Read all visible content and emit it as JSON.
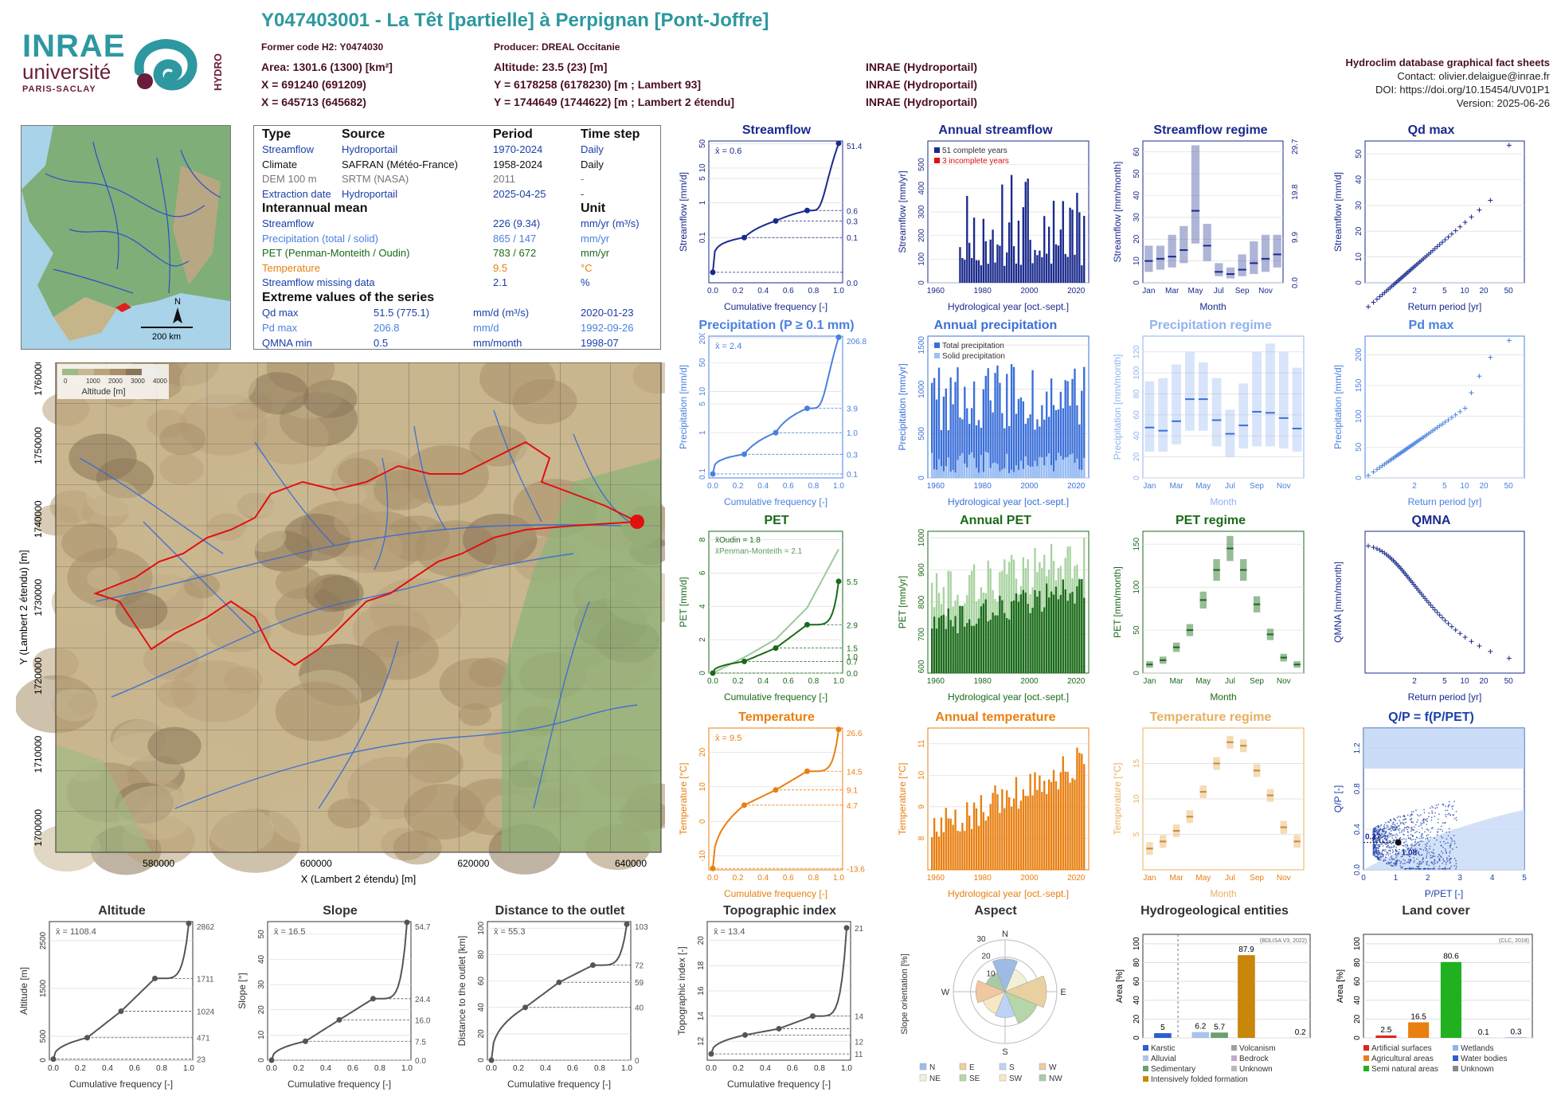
{
  "header": {
    "title": "Y047403001 - La Têt [partielle] à Perpignan [Pont-Joffre]",
    "former_code": "Former code H2: Y0474030",
    "producer": "Producer: DREAL Occitanie",
    "area": "Area: 1301.6 (1300) [km²]",
    "altitude": "Altitude: 23.5 (23) [m]",
    "x93": "X = 691240 (691209)",
    "y93": "Y = 6178258 (6178230) [m ; Lambert 93]",
    "x2e": "X = 645713 (645682)",
    "y2e": "Y = 1744649 (1744622) [m ; Lambert 2 étendu]",
    "src1": "INRAE (Hydroportail)",
    "src2": "INRAE (Hydroportail)",
    "src3": "INRAE (Hydroportail)",
    "db_title": "Hydroclim database graphical fact sheets",
    "contact": "Contact: olivier.delaigue@inrae.fr",
    "doi": "DOI: https://doi.org/10.15454/UV01P1",
    "version": "Version: 2025-06-26"
  },
  "logos": {
    "inrae": "INRAE",
    "univ": "université",
    "paris": "PARIS-SACLAY",
    "hydro": "HYDRO"
  },
  "locmap": {
    "scale": "200 km",
    "north": "N"
  },
  "table": {
    "h_type": "Type",
    "h_source": "Source",
    "h_period": "Period",
    "h_step": "Time step",
    "rows": [
      {
        "type": "Streamflow",
        "source": "Hydroportail",
        "period": "1970-2024",
        "step": "Daily",
        "cls": "c-blue"
      },
      {
        "type": "Climate",
        "source": "SAFRAN (Météo-France)",
        "period": "1958-2024",
        "step": "Daily",
        "cls": "c-dark"
      },
      {
        "type": "DEM 100 m",
        "source": "SRTM (NASA)",
        "period": "2011",
        "step": "-",
        "cls": "c-gray"
      },
      {
        "type": "Extraction date",
        "source": "Hydroportail",
        "period": "2025-04-25",
        "step": "-",
        "cls": "c-blue"
      }
    ],
    "h_mean": "Interannual mean",
    "h_unit": "Unit",
    "means": [
      {
        "name": "Streamflow",
        "value": "226 (9.34)",
        "unit": "mm/yr (m³/s)",
        "cls": "c-blue"
      },
      {
        "name": "Precipitation (total / solid)",
        "value": "865 / 147",
        "unit": "mm/yr",
        "cls": "c-lblue"
      },
      {
        "name": "PET (Penman-Monteith / Oudin)",
        "value": "783 / 672",
        "unit": "mm/yr",
        "cls": "c-green"
      },
      {
        "name": "Temperature",
        "value": "9.5",
        "unit": "°C",
        "cls": "c-orange"
      },
      {
        "name": "Streamflow missing data",
        "value": "2.1",
        "unit": "%",
        "cls": "c-blue"
      }
    ],
    "h_extreme": "Extreme values of the series",
    "extremes": [
      {
        "name": "Qd max",
        "value": "51.5 (775.1)",
        "unit": "mm/d (m³/s)",
        "date": "2020-01-23",
        "cls": "c-blue"
      },
      {
        "name": "Pd max",
        "value": "206.8",
        "unit": "mm/d",
        "date": "1992-09-26",
        "cls": "c-lblue"
      },
      {
        "name": "QMNA min",
        "value": "0.5",
        "unit": "mm/month",
        "date": "1998-07",
        "cls": "c-blue"
      }
    ]
  },
  "map": {
    "xlabel": "X (Lambert 2 étendu) [m]",
    "ylabel": "Y (Lambert 2 étendu) [m]",
    "xticks": [
      "580000",
      "600000",
      "620000",
      "640000"
    ],
    "yticks": [
      "1700000",
      "1710000",
      "1720000",
      "1730000",
      "1740000",
      "1750000",
      "1760000"
    ],
    "legend_ticks": [
      "0",
      "1000",
      "2000",
      "3000",
      "4000"
    ],
    "legend_title": "Altitude [m]"
  },
  "chart_data": [
    {
      "id": "streamflow",
      "type": "line",
      "title": "Streamflow",
      "xlabel": "Cumulative frequency [-]",
      "ylabel": "Streamflow [mm/d]",
      "mean": "x̄ = 0.6",
      "ylog": true,
      "ylim": [
        0.005,
        60
      ],
      "x": [
        0,
        0.25,
        0.5,
        0.75,
        1.0
      ],
      "y": [
        0.01,
        0.1,
        0.3,
        0.6,
        51.4
      ],
      "right_ticks": [
        "51.4",
        "0.6",
        "0.3",
        "0.1",
        "0.0"
      ],
      "yticks": [
        "0.1",
        "1",
        "5",
        "10",
        "50"
      ],
      "color": "#1a2a8c"
    },
    {
      "id": "annual_streamflow",
      "type": "bar",
      "title": "Annual streamflow",
      "xlabel": "Hydrological year [oct.-sept.]",
      "ylabel": "Streamflow [mm/yr]",
      "ylim": [
        0,
        600
      ],
      "yticks": [
        "0",
        "100",
        "200",
        "300",
        "400",
        "500"
      ],
      "xticks": [
        "1960",
        "1980",
        "2000",
        "2020"
      ],
      "legend": [
        "51 complete years",
        "3 incomplete years"
      ],
      "color": "#1a2a8c"
    },
    {
      "id": "streamflow_regime",
      "type": "bar",
      "title": "Streamflow regime",
      "xlabel": "Month",
      "ylabel": "Streamflow [mm/month]",
      "ylim": [
        0,
        65
      ],
      "yticks": [
        "0",
        "10",
        "20",
        "30",
        "40",
        "50",
        "60"
      ],
      "right_ticks": [
        "29.7",
        "19.8",
        "9.9",
        "0.0"
      ],
      "months": [
        "Jan",
        "Mar",
        "May",
        "Jul",
        "Sep",
        "Nov"
      ],
      "median": [
        10,
        11,
        12,
        15,
        33,
        17,
        5,
        4,
        6,
        9,
        11,
        13
      ],
      "q10": [
        5,
        6,
        7,
        9,
        18,
        10,
        3,
        2,
        3,
        4,
        5,
        7
      ],
      "q90": [
        17,
        17,
        22,
        26,
        63,
        27,
        9,
        7,
        13,
        19,
        22,
        22
      ],
      "color": "#1a2a8c"
    },
    {
      "id": "qd_max",
      "type": "scatter",
      "title": "Qd max",
      "xlabel": "Return period [yr]",
      "ylabel": "Streamflow [mm/d]",
      "ylim": [
        0,
        55
      ],
      "yticks": [
        "0",
        "10",
        "20",
        "30",
        "40",
        "50"
      ],
      "xticks": [
        "2",
        "5",
        "10",
        "20",
        "50"
      ],
      "color": "#1a2a8c"
    },
    {
      "id": "precip",
      "type": "line",
      "title": "Precipitation (P ≥ 0.1 mm)",
      "xlabel": "Cumulative frequency [-]",
      "ylabel": "Precipitation [mm/d]",
      "mean": "x̄ = 2.4",
      "ylog": true,
      "ylim": [
        0.08,
        220
      ],
      "x": [
        0,
        0.25,
        0.5,
        0.75,
        1.0
      ],
      "y": [
        0.1,
        0.3,
        1.0,
        3.9,
        206.8
      ],
      "right_ticks": [
        "206.8",
        "3.9",
        "1.0",
        "0.3",
        "0.1"
      ],
      "yticks": [
        "0.1",
        "1",
        "5",
        "10",
        "50",
        "200"
      ],
      "color": "#4a80e0"
    },
    {
      "id": "annual_precip",
      "type": "bar",
      "title": "Annual precipitation",
      "xlabel": "Hydrological year [oct.-sept.]",
      "ylabel": "Precipitation [mm/yr]",
      "ylim": [
        0,
        1600
      ],
      "yticks": [
        "0",
        "500",
        "1000",
        "1500"
      ],
      "xticks": [
        "1960",
        "1980",
        "2000",
        "2020"
      ],
      "legend": [
        "Total precipitation",
        "Solid precipitation"
      ],
      "color": "#3a6fd8"
    },
    {
      "id": "precip_regime",
      "type": "bar",
      "title": "Precipitation regime",
      "xlabel": "Month",
      "ylabel": "Precipitation [mm/month]",
      "ylim": [
        0,
        135
      ],
      "yticks": [
        "0",
        "20",
        "40",
        "60",
        "80",
        "100",
        "120"
      ],
      "months": [
        "Jan",
        "Mar",
        "May",
        "Jul",
        "Sep",
        "Nov"
      ],
      "median": [
        48,
        45,
        54,
        75,
        75,
        55,
        42,
        50,
        63,
        62,
        57,
        47
      ],
      "q10": [
        25,
        25,
        32,
        45,
        45,
        30,
        20,
        28,
        30,
        30,
        28,
        25
      ],
      "q90": [
        92,
        95,
        108,
        120,
        110,
        95,
        65,
        90,
        120,
        128,
        120,
        105
      ],
      "color": "#8fb3f0"
    },
    {
      "id": "pd_max",
      "type": "scatter",
      "title": "Pd max",
      "xlabel": "Return period [yr]",
      "ylabel": "Precipitation [mm/d]",
      "ylim": [
        0,
        230
      ],
      "yticks": [
        "0",
        "50",
        "100",
        "150",
        "200"
      ],
      "xticks": [
        "2",
        "5",
        "10",
        "20",
        "50"
      ],
      "color": "#4a80e0"
    },
    {
      "id": "pet",
      "type": "line",
      "title": "PET",
      "xlabel": "Cumulative frequency [-]",
      "ylabel": "PET [mm/d]",
      "mean_oudin": "x̄Oudin = 1.8",
      "mean_pm": "x̄Penman-Monteith = 2.1",
      "ylim": [
        0,
        8.5
      ],
      "x": [
        0,
        0.25,
        0.5,
        0.75,
        1.0
      ],
      "y": [
        0.0,
        0.7,
        1.5,
        2.9,
        5.5
      ],
      "right_ticks": [
        "5.5",
        "2.9",
        "1.5",
        "1.0",
        "0.7",
        "0.0"
      ],
      "yticks": [
        "0",
        "2",
        "4",
        "6",
        "8"
      ],
      "color": "#1a6a1a"
    },
    {
      "id": "annual_pet",
      "type": "bar",
      "title": "Annual PET",
      "xlabel": "Hydrological year [oct.-sept.]",
      "ylabel": "PET [mm/yr]",
      "ylim": [
        580,
        1020
      ],
      "yticks": [
        "600",
        "700",
        "800",
        "900",
        "1000"
      ],
      "xticks": [
        "1960",
        "1980",
        "2000",
        "2020"
      ],
      "color": "#1a6a1a"
    },
    {
      "id": "pet_regime",
      "type": "bar",
      "title": "PET regime",
      "xlabel": "Month",
      "ylabel": "PET [mm/month]",
      "ylim": [
        0,
        165
      ],
      "yticks": [
        "0",
        "50",
        "100",
        "150"
      ],
      "months": [
        "Jan",
        "Mar",
        "May",
        "Jul",
        "Sep",
        "Nov"
      ],
      "median": [
        10,
        15,
        30,
        50,
        85,
        120,
        145,
        120,
        80,
        45,
        18,
        10
      ],
      "color": "#1a6a1a"
    },
    {
      "id": "qmna",
      "type": "scatter",
      "title": "QMNA",
      "xlabel": "Return period [yr]",
      "ylabel": "QMNA [mm/month]",
      "ylim": [
        0,
        15
      ],
      "xticks": [
        "2",
        "5",
        "10",
        "20",
        "50"
      ],
      "color": "#1a2a8c"
    },
    {
      "id": "temperature",
      "type": "line",
      "title": "Temperature",
      "xlabel": "Cumulative frequency [-]",
      "ylabel": "Temperature [°C]",
      "mean": "x̄ = 9.5",
      "ylim": [
        -14,
        27
      ],
      "x": [
        0,
        0.25,
        0.5,
        0.75,
        1.0
      ],
      "y": [
        -13.6,
        4.7,
        9.1,
        14.5,
        26.6
      ],
      "right_ticks": [
        "26.6",
        "14.5",
        "9.1",
        "4.7",
        "-13.6"
      ],
      "yticks": [
        "-10",
        "0",
        "10",
        "20"
      ],
      "color": "#e87f10"
    },
    {
      "id": "annual_temp",
      "type": "bar",
      "title": "Annual temperature",
      "xlabel": "Hydrological year [oct.-sept.]",
      "ylabel": "Temperature [°C]",
      "ylim": [
        7,
        11.5
      ],
      "yticks": [
        "8",
        "9",
        "10",
        "11"
      ],
      "xticks": [
        "1960",
        "1980",
        "2000",
        "2020"
      ],
      "color": "#e87f10"
    },
    {
      "id": "temp_regime",
      "type": "bar",
      "title": "Temperature regime",
      "xlabel": "Month",
      "ylabel": "Temperature [°C]",
      "ylim": [
        0,
        20
      ],
      "yticks": [
        "5",
        "10",
        "15"
      ],
      "months": [
        "Jan",
        "Mar",
        "May",
        "Jul",
        "Sep",
        "Nov"
      ],
      "median": [
        3,
        4,
        5.5,
        7.5,
        11,
        15,
        18,
        17.5,
        14,
        10.5,
        6,
        4
      ],
      "color": "#e8b060"
    },
    {
      "id": "qp",
      "type": "scatter",
      "title": "Q/P = f(P/PET)",
      "xlabel": "P/PET [-]",
      "ylabel": "Q/P [-]",
      "xlim": [
        0,
        5
      ],
      "ylim": [
        0,
        1.4
      ],
      "xticks": [
        "0",
        "1",
        "2",
        "3",
        "4",
        "5"
      ],
      "yticks": [
        "0.0",
        "0.4",
        "0.8",
        "1.2"
      ],
      "point_x": "1.08",
      "point_y": "0.27",
      "color": "#1a3fa8"
    },
    {
      "id": "altitude",
      "type": "line",
      "title": "Altitude",
      "xlabel": "Cumulative frequency [-]",
      "ylabel": "Altitude [m]",
      "mean": "x̄ = 1108.4",
      "ylim": [
        0,
        2900
      ],
      "x": [
        0,
        0.25,
        0.5,
        0.75,
        1.0
      ],
      "y": [
        23,
        471,
        1024,
        1711,
        2862
      ],
      "right_ticks": [
        "2862",
        "1711",
        "1024",
        "471",
        "23"
      ],
      "yticks": [
        "0",
        "500",
        "1500",
        "2500"
      ],
      "color": "#555"
    },
    {
      "id": "slope",
      "type": "line",
      "title": "Slope",
      "xlabel": "Cumulative frequency [-]",
      "ylabel": "Slope [°]",
      "mean": "x̄ = 16.5",
      "ylim": [
        0,
        55
      ],
      "x": [
        0,
        0.25,
        0.5,
        0.75,
        1.0
      ],
      "y": [
        0.0,
        7.5,
        16.0,
        24.4,
        54.7
      ],
      "right_ticks": [
        "54.7",
        "24.4",
        "16.0",
        "7.5",
        "0.0"
      ],
      "yticks": [
        "0",
        "10",
        "20",
        "30",
        "40",
        "50"
      ],
      "color": "#555"
    },
    {
      "id": "distance",
      "type": "line",
      "title": "Distance to the outlet",
      "xlabel": "Cumulative frequency [-]",
      "ylabel": "Distance to the outlet [km]",
      "mean": "x̄ = 55.3",
      "ylim": [
        0,
        105
      ],
      "x": [
        0,
        0.25,
        0.5,
        0.75,
        1.0
      ],
      "y": [
        0,
        40,
        59,
        72,
        103
      ],
      "right_ticks": [
        "103",
        "72",
        "59",
        "40",
        "0"
      ],
      "yticks": [
        "0",
        "20",
        "40",
        "60",
        "80",
        "100"
      ],
      "color": "#555"
    },
    {
      "id": "topo",
      "type": "line",
      "title": "Topographic index",
      "xlabel": "Cumulative frequency [-]",
      "ylabel": "Topographic index [-]",
      "mean": "x̄ = 13.4",
      "ylim": [
        10.5,
        21.5
      ],
      "x": [
        0,
        0.25,
        0.5,
        0.75,
        1.0
      ],
      "y": [
        11,
        12.5,
        13,
        14,
        21
      ],
      "right_ticks": [
        "21",
        "14",
        "12",
        "11"
      ],
      "yticks": [
        "12",
        "14",
        "16",
        "18",
        "20"
      ],
      "color": "#555"
    },
    {
      "id": "aspect",
      "type": "pie",
      "title": "Aspect",
      "ylabel": "Slope orientation [%]",
      "rings": [
        "10",
        "20",
        "30"
      ],
      "dirs": [
        "N",
        "E",
        "S",
        "W"
      ],
      "legend": [
        "N",
        "E",
        "S",
        "W",
        "NE",
        "SE",
        "SW",
        "NW"
      ]
    },
    {
      "id": "hydrogeo",
      "type": "bar",
      "title": "Hydrogeological entities",
      "ylabel": "Area [%]",
      "note": "(BDLISA V3, 2022)",
      "categories": [
        "Karstic",
        "Alluvial",
        "Sedimentary",
        "Intensively folded formation",
        "Volcanism",
        "Bedrock",
        "Unknown"
      ],
      "values": [
        5,
        6.2,
        5.7,
        87.9,
        0.2
      ],
      "labels": [
        "5",
        "6.2",
        "5.7",
        "87.9",
        "0.2"
      ],
      "yticks": [
        "0",
        "20",
        "40",
        "60",
        "80",
        "100"
      ]
    },
    {
      "id": "landcover",
      "type": "bar",
      "title": "Land cover",
      "ylabel": "Area [%]",
      "note": "(CLC, 2018)",
      "categories": [
        "Artificial surfaces",
        "Agricultural areas",
        "Semi natural areas",
        "Wetlands",
        "Water bodies",
        "Unknown"
      ],
      "values": [
        2.5,
        16.5,
        80.6,
        0.1,
        0.3
      ],
      "labels": [
        "2.5",
        "16.5",
        "80.6",
        "0.1",
        "0.3"
      ],
      "yticks": [
        "0",
        "20",
        "40",
        "60",
        "80",
        "100"
      ]
    }
  ]
}
